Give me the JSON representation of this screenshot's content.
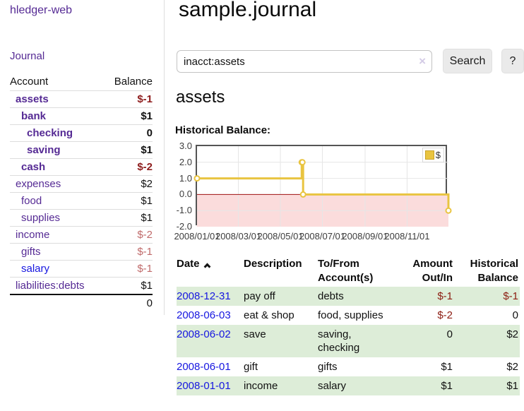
{
  "app": {
    "brand": "hledger-web"
  },
  "sidebar": {
    "nav": {
      "journal_label": "Journal"
    },
    "accounts_header": {
      "account": "Account",
      "balance": "Balance"
    },
    "accounts": [
      {
        "name": "assets",
        "indent": 1,
        "bold": true,
        "balance": "$-1",
        "balance_style": "neg-strong"
      },
      {
        "name": "bank",
        "indent": 2,
        "bold": true,
        "balance": "$1",
        "balance_style": ""
      },
      {
        "name": "checking",
        "indent": 3,
        "bold": true,
        "balance": "0",
        "balance_style": ""
      },
      {
        "name": "saving",
        "indent": 3,
        "bold": true,
        "balance": "$1",
        "balance_style": ""
      },
      {
        "name": "cash",
        "indent": 2,
        "bold": true,
        "balance": "$-2",
        "balance_style": "neg-strong"
      },
      {
        "name": "expenses",
        "indent": 1,
        "bold": false,
        "balance": "$2",
        "balance_style": ""
      },
      {
        "name": "food",
        "indent": 2,
        "bold": false,
        "balance": "$1",
        "balance_style": ""
      },
      {
        "name": "supplies",
        "indent": 2,
        "bold": false,
        "balance": "$1",
        "balance_style": ""
      },
      {
        "name": "income",
        "indent": 1,
        "bold": false,
        "balance": "$-2",
        "balance_style": "neg-soft"
      },
      {
        "name": "gifts",
        "indent": 2,
        "bold": false,
        "balance": "$-1",
        "balance_style": "neg-soft"
      },
      {
        "name": "salary",
        "indent": 2,
        "bold": false,
        "link_style": "unvisited",
        "balance": "$-1",
        "balance_style": "neg-soft"
      },
      {
        "name": "liabilities:debts",
        "indent": 1,
        "bold": false,
        "balance": "$1",
        "balance_style": ""
      }
    ],
    "total": "0"
  },
  "header": {
    "title": "sample.journal"
  },
  "search": {
    "value": "inacct:assets",
    "clear_icon": "×",
    "search_label": "Search",
    "help_label": "?"
  },
  "main": {
    "account_title": "assets",
    "chart_label": "Historical Balance:"
  },
  "chart_data": {
    "type": "line",
    "title": "Historical Balance:",
    "step": true,
    "legend": {
      "label": "$",
      "position": "top-right"
    },
    "ylim": [
      -2,
      3
    ],
    "x_domain_days": [
      0,
      365
    ],
    "y_ticks": [
      "3.0",
      "2.0",
      "1.0",
      "0.0",
      "-1.0",
      "-2.0"
    ],
    "x_ticks": [
      {
        "label": "2008/01/01",
        "day": 0
      },
      {
        "label": "2008/03/01",
        "day": 60
      },
      {
        "label": "2008/05/01",
        "day": 121
      },
      {
        "label": "2008/07/01",
        "day": 182
      },
      {
        "label": "2008/09/01",
        "day": 244
      },
      {
        "label": "2008/11/01",
        "day": 305
      }
    ],
    "series": [
      {
        "name": "$",
        "points": [
          {
            "date": "2008-01-01",
            "day": 0,
            "value": 1
          },
          {
            "date": "2008-06-01",
            "day": 152,
            "value": 2
          },
          {
            "date": "2008-06-02",
            "day": 153,
            "value": 2
          },
          {
            "date": "2008-06-03",
            "day": 154,
            "value": 0
          },
          {
            "date": "2008-12-31",
            "day": 365,
            "value": -1
          }
        ]
      }
    ],
    "colors": {
      "line": "#e9c440",
      "marker_fill": "#ffffff",
      "negative_region": "#fbdcdc",
      "zero_line": "#9e1010",
      "grid": "#e6e6e6",
      "border": "#545454"
    }
  },
  "register": {
    "columns": [
      {
        "label": "Date",
        "sort": "asc"
      },
      {
        "label": "Description"
      },
      {
        "line1": "To/From",
        "line2": "Account(s)"
      },
      {
        "line1": "Amount",
        "line2": "Out/In"
      },
      {
        "line1": "Historical",
        "line2": "Balance"
      }
    ],
    "rows": [
      {
        "date": "2008-12-31",
        "description": "pay off",
        "accounts": "debts",
        "amount": "$-1",
        "amount_neg": true,
        "balance": "$-1",
        "balance_neg": true,
        "shaded": true
      },
      {
        "date": "2008-06-03",
        "description": "eat & shop",
        "accounts": "food, supplies",
        "amount": "$-2",
        "amount_neg": true,
        "balance": "0",
        "balance_neg": false,
        "shaded": false
      },
      {
        "date": "2008-06-02",
        "description": "save",
        "accounts": "saving, checking",
        "amount": "0",
        "amount_neg": false,
        "balance": "$2",
        "balance_neg": false,
        "shaded": true
      },
      {
        "date": "2008-06-01",
        "description": "gift",
        "accounts": "gifts",
        "amount": "$1",
        "amount_neg": false,
        "balance": "$2",
        "balance_neg": false,
        "shaded": false
      },
      {
        "date": "2008-01-01",
        "description": "income",
        "accounts": "salary",
        "amount": "$1",
        "amount_neg": false,
        "balance": "$1",
        "balance_neg": false,
        "shaded": true
      }
    ]
  }
}
